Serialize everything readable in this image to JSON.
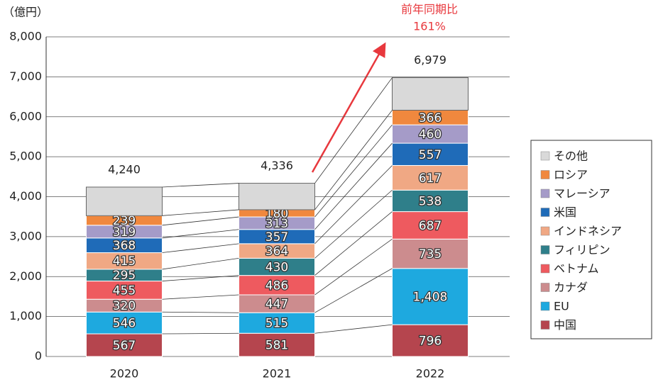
{
  "chart_data": {
    "type": "stacked_bar",
    "y_label": "（億円）",
    "annotation": [
      "前年同期比",
      "161%"
    ],
    "categories": [
      "2020",
      "2021",
      "2022"
    ],
    "ylim": [
      0,
      8000
    ],
    "yticks": [
      0,
      {
        "value": 1000,
        "label": "1,000"
      },
      {
        "value": 2000,
        "label": "2,000"
      },
      {
        "value": 3000,
        "label": "3,000"
      },
      {
        "value": 4000,
        "label": "4,000"
      },
      {
        "value": 5000,
        "label": "5,000"
      },
      {
        "value": 6000,
        "label": "6,000"
      },
      {
        "value": 7000,
        "label": "7,000"
      },
      {
        "value": 8000,
        "label": "8,000"
      }
    ],
    "grid": true,
    "legend": "right",
    "series": [
      {
        "name": "中国",
        "color": "#b5454e",
        "values": [
          567,
          581,
          796
        ]
      },
      {
        "name": "EU",
        "color": "#1ea9df",
        "values": [
          546,
          515,
          1408
        ],
        "value_labels": [
          "546",
          "515",
          "1,408"
        ]
      },
      {
        "name": "カナダ",
        "color": "#cc8c8e",
        "values": [
          320,
          447,
          735
        ]
      },
      {
        "name": "ベトナム",
        "color": "#ee5a5f",
        "values": [
          455,
          486,
          687
        ]
      },
      {
        "name": "フィリピン",
        "color": "#2f7f8a",
        "values": [
          295,
          430,
          538
        ]
      },
      {
        "name": "インドネシア",
        "color": "#f0a884",
        "values": [
          415,
          364,
          617
        ]
      },
      {
        "name": "米国",
        "color": "#1f6bb8",
        "values": [
          368,
          357,
          557
        ]
      },
      {
        "name": "マレーシア",
        "color": "#a59bc8",
        "values": [
          319,
          313,
          460
        ]
      },
      {
        "name": "ロシア",
        "color": "#f0883e",
        "values": [
          239,
          180,
          366
        ]
      },
      {
        "name": "その他",
        "color": "#d9d9d9",
        "values": [
          716,
          663,
          815
        ],
        "labels": false
      }
    ],
    "totals": {
      "values": [
        4240,
        4336,
        6979
      ],
      "value_labels": [
        "4,240",
        "4,336",
        "6,979"
      ]
    }
  }
}
